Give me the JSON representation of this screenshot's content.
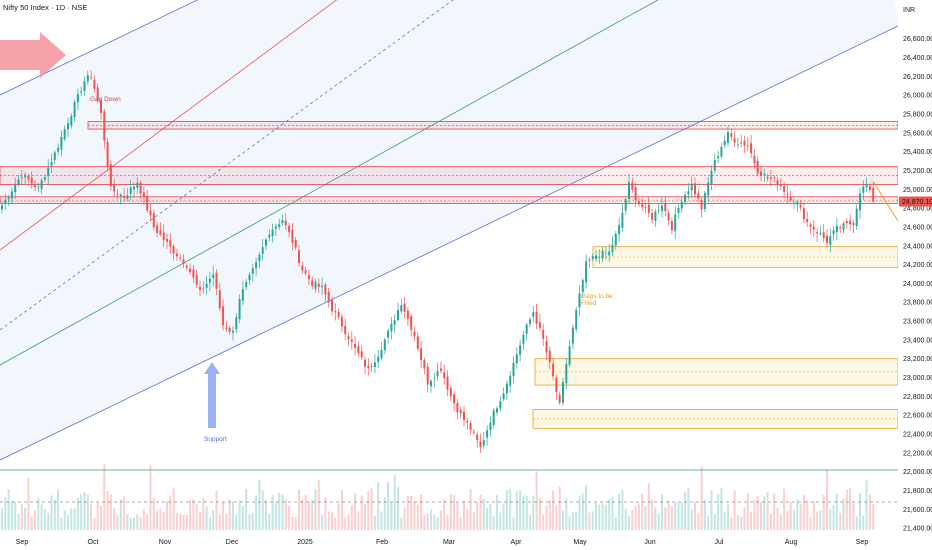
{
  "header": {
    "title": "Nifty 50 Index · 1D · NSE",
    "currency": "INR"
  },
  "colors": {
    "up": "#26a69a",
    "down": "#ef5350",
    "red_line": "#ef5350",
    "blue_line": "#5b6fd6",
    "green_line": "#3a9a6e",
    "zone_red": "#e0404a",
    "zone_orange": "#f0a020",
    "price_tag_bg": "#ef5350",
    "arrow_red": "#f28b94",
    "arrow_blue": "#8faaf0"
  },
  "annotations": {
    "gap_down": "Gap Down",
    "support": "Support",
    "gaps_filled": "Gaps to be\nFilled",
    "current_price": "24,870.10"
  },
  "chart_data": {
    "type": "candlestick",
    "title": "Nifty 50 Index · 1D · NSE",
    "ylabel": "INR",
    "ylim": [
      21380,
      26820
    ],
    "x_ticks": [
      "Sep",
      "Oct",
      "Nov",
      "Dec",
      "2025",
      "Feb",
      "Mar",
      "Apr",
      "May",
      "Jun",
      "Jul",
      "Aug",
      "Sep"
    ],
    "y_ticks": [
      21400,
      21600,
      21800,
      22000,
      22200,
      22400,
      22600,
      22800,
      23000,
      23200,
      23400,
      23600,
      23800,
      24000,
      24200,
      24400,
      24600,
      24800,
      25000,
      25200,
      25400,
      25600,
      25800,
      26000,
      26200,
      26400,
      26600
    ],
    "anchor_closes": [
      [
        0,
        24830
      ],
      [
        6,
        25160
      ],
      [
        11,
        25010
      ],
      [
        16,
        25380
      ],
      [
        21,
        25810
      ],
      [
        25,
        26150
      ],
      [
        27,
        26210
      ],
      [
        30,
        25800
      ],
      [
        33,
        25000
      ],
      [
        37,
        24920
      ],
      [
        41,
        25080
      ],
      [
        46,
        24600
      ],
      [
        51,
        24380
      ],
      [
        56,
        24200
      ],
      [
        60,
        23900
      ],
      [
        64,
        24100
      ],
      [
        67,
        23560
      ],
      [
        70,
        23480
      ],
      [
        72,
        23850
      ],
      [
        77,
        24200
      ],
      [
        81,
        24550
      ],
      [
        85,
        24680
      ],
      [
        88,
        24450
      ],
      [
        91,
        24150
      ],
      [
        94,
        24000
      ],
      [
        97,
        23950
      ],
      [
        100,
        23730
      ],
      [
        103,
        23560
      ],
      [
        107,
        23300
      ],
      [
        111,
        23080
      ],
      [
        114,
        23250
      ],
      [
        118,
        23550
      ],
      [
        121,
        23800
      ],
      [
        125,
        23450
      ],
      [
        129,
        22950
      ],
      [
        133,
        23100
      ],
      [
        136,
        22800
      ],
      [
        139,
        22600
      ],
      [
        142,
        22460
      ],
      [
        145,
        22250
      ],
      [
        148,
        22550
      ],
      [
        152,
        22850
      ],
      [
        155,
        23150
      ],
      [
        158,
        23450
      ],
      [
        161,
        23700
      ],
      [
        164,
        23400
      ],
      [
        167,
        23000
      ],
      [
        169,
        22700
      ],
      [
        171,
        23150
      ],
      [
        174,
        23700
      ],
      [
        177,
        24200
      ],
      [
        180,
        24300
      ],
      [
        184,
        24330
      ],
      [
        187,
        24600
      ],
      [
        190,
        25050
      ],
      [
        193,
        24850
      ],
      [
        197,
        24700
      ],
      [
        200,
        24850
      ],
      [
        203,
        24600
      ],
      [
        206,
        24900
      ],
      [
        209,
        25050
      ],
      [
        212,
        24800
      ],
      [
        215,
        25200
      ],
      [
        218,
        25460
      ],
      [
        220,
        25580
      ],
      [
        223,
        25500
      ],
      [
        226,
        25470
      ],
      [
        229,
        25200
      ],
      [
        232,
        25120
      ],
      [
        235,
        25080
      ],
      [
        238,
        24950
      ],
      [
        241,
        24850
      ],
      [
        244,
        24650
      ],
      [
        247,
        24550
      ],
      [
        250,
        24450
      ],
      [
        253,
        24580
      ],
      [
        256,
        24620
      ],
      [
        258,
        24650
      ],
      [
        260,
        24980
      ],
      [
        262,
        25050
      ],
      [
        264,
        24870.1
      ]
    ],
    "overlays": {
      "red_zones": [
        [
          25640,
          25720
        ],
        [
          24850,
          24920
        ],
        [
          25050,
          25240
        ]
      ],
      "orange_zones": [
        [
          24170,
          24390
        ],
        [
          22920,
          23200
        ],
        [
          22460,
          22660
        ]
      ],
      "projection": {
        "from": [
          264,
          25080
        ],
        "to": [
          275,
          24270
        ]
      }
    }
  }
}
